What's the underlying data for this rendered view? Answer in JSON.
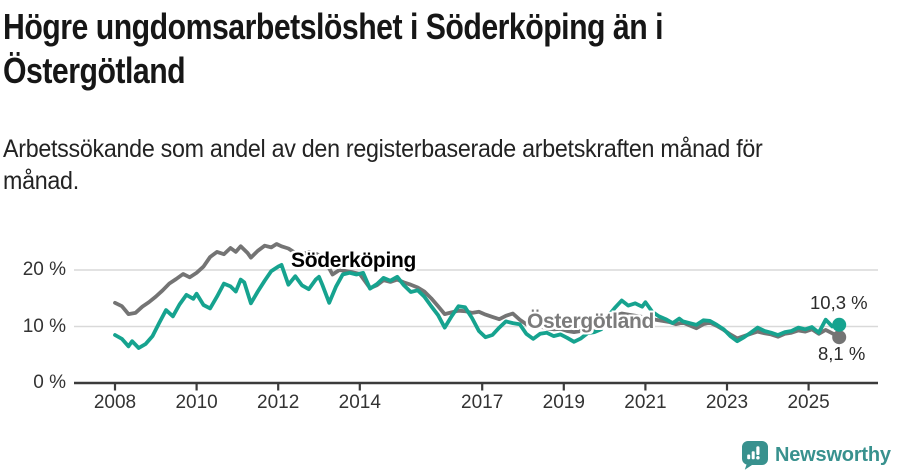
{
  "header": {
    "title_lines": [
      "Högre ungdomsarbetslöshet i Söderköping än i",
      "Östergötland"
    ],
    "subtitle_lines": [
      "Arbetssökande som andel av den registerbaserade arbetskraften månad för",
      "månad."
    ]
  },
  "footer": {
    "brand": "Newsworthy"
  },
  "colors": {
    "soderkoping": "#16a38f",
    "ostergotland": "#747474",
    "logo_teal": "#38918e",
    "grid": "#d9d9d9",
    "axis": "#3b3b3b",
    "value_label": "#2b2b2b"
  },
  "chart_data": {
    "type": "line",
    "unit": "%",
    "grid": "horizontal-only",
    "legend_position": "inline-labels",
    "xlim": [
      2007.1,
      2026.6
    ],
    "ylim": [
      0,
      25.8
    ],
    "x_ticks": [
      {
        "v": 2008,
        "label": "2008"
      },
      {
        "v": 2010,
        "label": "2010"
      },
      {
        "v": 2012,
        "label": "2012"
      },
      {
        "v": 2014,
        "label": "2014"
      },
      {
        "v": 2017,
        "label": "2017"
      },
      {
        "v": 2019,
        "label": "2019"
      },
      {
        "v": 2021,
        "label": "2021"
      },
      {
        "v": 2023,
        "label": "2023"
      },
      {
        "v": 2025,
        "label": "2025"
      }
    ],
    "y_ticks": [
      {
        "v": 0,
        "label": "0 %"
      },
      {
        "v": 10,
        "label": "10 %"
      },
      {
        "v": 20,
        "label": "20 %"
      }
    ],
    "series": [
      {
        "name": "Söderköping",
        "color": "#16a38f",
        "end_label": "10,3 %",
        "last_value": 10.3,
        "points": [
          [
            2008.0,
            8.5
          ],
          [
            2008.17,
            7.8
          ],
          [
            2008.33,
            6.5
          ],
          [
            2008.42,
            7.4
          ],
          [
            2008.58,
            6.2
          ],
          [
            2008.75,
            6.9
          ],
          [
            2008.92,
            8.3
          ],
          [
            2009.08,
            10.6
          ],
          [
            2009.25,
            12.9
          ],
          [
            2009.42,
            11.8
          ],
          [
            2009.58,
            13.9
          ],
          [
            2009.75,
            15.6
          ],
          [
            2009.92,
            14.9
          ],
          [
            2010.0,
            15.8
          ],
          [
            2010.17,
            13.8
          ],
          [
            2010.33,
            13.2
          ],
          [
            2010.5,
            15.3
          ],
          [
            2010.67,
            17.6
          ],
          [
            2010.83,
            17.1
          ],
          [
            2010.96,
            16.2
          ],
          [
            2011.08,
            18.3
          ],
          [
            2011.17,
            17.8
          ],
          [
            2011.33,
            14.1
          ],
          [
            2011.5,
            16.2
          ],
          [
            2011.67,
            18.1
          ],
          [
            2011.83,
            19.8
          ],
          [
            2012.0,
            20.6
          ],
          [
            2012.08,
            20.9
          ],
          [
            2012.25,
            17.4
          ],
          [
            2012.42,
            18.9
          ],
          [
            2012.58,
            17.3
          ],
          [
            2012.75,
            16.6
          ],
          [
            2012.92,
            18.3
          ],
          [
            2013.0,
            18.8
          ],
          [
            2013.08,
            17.4
          ],
          [
            2013.25,
            14.2
          ],
          [
            2013.42,
            17.1
          ],
          [
            2013.58,
            19.2
          ],
          [
            2013.75,
            19.5
          ],
          [
            2013.92,
            19.2
          ],
          [
            2014.08,
            19.5
          ],
          [
            2014.25,
            16.7
          ],
          [
            2014.42,
            17.5
          ],
          [
            2014.58,
            18.6
          ],
          [
            2014.75,
            18.1
          ],
          [
            2014.92,
            18.8
          ],
          [
            2015.08,
            17.3
          ],
          [
            2015.25,
            16.1
          ],
          [
            2015.42,
            16.4
          ],
          [
            2015.58,
            15.3
          ],
          [
            2015.75,
            13.6
          ],
          [
            2015.92,
            12.0
          ],
          [
            2016.08,
            9.8
          ],
          [
            2016.25,
            11.8
          ],
          [
            2016.42,
            13.6
          ],
          [
            2016.58,
            13.4
          ],
          [
            2016.75,
            11.5
          ],
          [
            2016.92,
            9.2
          ],
          [
            2017.08,
            8.1
          ],
          [
            2017.25,
            8.5
          ],
          [
            2017.42,
            9.8
          ],
          [
            2017.58,
            10.9
          ],
          [
            2017.75,
            10.6
          ],
          [
            2017.92,
            10.4
          ],
          [
            2018.08,
            8.7
          ],
          [
            2018.25,
            7.8
          ],
          [
            2018.42,
            8.7
          ],
          [
            2018.58,
            8.9
          ],
          [
            2018.75,
            8.3
          ],
          [
            2018.92,
            8.6
          ],
          [
            2019.08,
            8.0
          ],
          [
            2019.25,
            7.3
          ],
          [
            2019.42,
            7.9
          ],
          [
            2019.58,
            8.8
          ],
          [
            2019.75,
            9.0
          ],
          [
            2019.92,
            9.5
          ],
          [
            2020.08,
            11.8
          ],
          [
            2020.25,
            13.3
          ],
          [
            2020.42,
            14.6
          ],
          [
            2020.58,
            13.7
          ],
          [
            2020.75,
            14.1
          ],
          [
            2020.92,
            13.5
          ],
          [
            2021.0,
            14.3
          ],
          [
            2021.17,
            12.6
          ],
          [
            2021.33,
            11.8
          ],
          [
            2021.5,
            11.3
          ],
          [
            2021.67,
            10.6
          ],
          [
            2021.83,
            11.4
          ],
          [
            2021.92,
            10.9
          ],
          [
            2022.08,
            10.6
          ],
          [
            2022.25,
            10.3
          ],
          [
            2022.42,
            11.1
          ],
          [
            2022.58,
            11.0
          ],
          [
            2022.75,
            10.3
          ],
          [
            2022.92,
            9.5
          ],
          [
            2023.08,
            8.3
          ],
          [
            2023.25,
            7.4
          ],
          [
            2023.42,
            8.1
          ],
          [
            2023.58,
            8.9
          ],
          [
            2023.75,
            9.8
          ],
          [
            2023.92,
            9.2
          ],
          [
            2024.08,
            8.9
          ],
          [
            2024.25,
            8.5
          ],
          [
            2024.42,
            9.0
          ],
          [
            2024.58,
            9.2
          ],
          [
            2024.75,
            9.8
          ],
          [
            2024.92,
            9.5
          ],
          [
            2025.08,
            9.9
          ],
          [
            2025.25,
            8.9
          ],
          [
            2025.42,
            11.2
          ],
          [
            2025.58,
            10.0
          ],
          [
            2025.75,
            10.3
          ]
        ]
      },
      {
        "name": "Östergötland",
        "color": "#747474",
        "end_label": "8,1 %",
        "last_value": 8.1,
        "points": [
          [
            2008.0,
            14.2
          ],
          [
            2008.17,
            13.6
          ],
          [
            2008.33,
            12.2
          ],
          [
            2008.5,
            12.4
          ],
          [
            2008.67,
            13.5
          ],
          [
            2008.83,
            14.3
          ],
          [
            2009.0,
            15.3
          ],
          [
            2009.17,
            16.4
          ],
          [
            2009.33,
            17.6
          ],
          [
            2009.5,
            18.4
          ],
          [
            2009.67,
            19.3
          ],
          [
            2009.83,
            18.7
          ],
          [
            2010.0,
            19.5
          ],
          [
            2010.17,
            20.6
          ],
          [
            2010.33,
            22.3
          ],
          [
            2010.5,
            23.2
          ],
          [
            2010.67,
            22.8
          ],
          [
            2010.83,
            23.9
          ],
          [
            2010.96,
            23.2
          ],
          [
            2011.08,
            24.2
          ],
          [
            2011.25,
            23.0
          ],
          [
            2011.33,
            22.2
          ],
          [
            2011.5,
            23.4
          ],
          [
            2011.67,
            24.3
          ],
          [
            2011.83,
            24.0
          ],
          [
            2011.96,
            24.6
          ],
          [
            2012.08,
            24.2
          ],
          [
            2012.25,
            23.8
          ],
          [
            2012.42,
            23.0
          ],
          [
            2012.58,
            22.7
          ],
          [
            2012.75,
            23.2
          ],
          [
            2012.92,
            22.9
          ],
          [
            2013.08,
            22.3
          ],
          [
            2013.25,
            20.3
          ],
          [
            2013.33,
            19.2
          ],
          [
            2013.5,
            20.0
          ],
          [
            2013.67,
            19.8
          ],
          [
            2013.83,
            19.6
          ],
          [
            2014.0,
            19.3
          ],
          [
            2014.25,
            16.8
          ],
          [
            2014.42,
            17.3
          ],
          [
            2014.58,
            18.2
          ],
          [
            2014.75,
            17.9
          ],
          [
            2014.92,
            18.3
          ],
          [
            2015.08,
            17.8
          ],
          [
            2015.25,
            17.4
          ],
          [
            2015.42,
            16.9
          ],
          [
            2015.58,
            16.2
          ],
          [
            2015.75,
            15.0
          ],
          [
            2015.92,
            13.6
          ],
          [
            2016.08,
            12.2
          ],
          [
            2016.25,
            12.5
          ],
          [
            2016.42,
            12.8
          ],
          [
            2016.58,
            12.7
          ],
          [
            2016.75,
            12.4
          ],
          [
            2016.92,
            12.6
          ],
          [
            2017.08,
            12.1
          ],
          [
            2017.25,
            11.7
          ],
          [
            2017.42,
            11.3
          ],
          [
            2017.58,
            11.9
          ],
          [
            2017.75,
            12.3
          ],
          [
            2017.92,
            11.2
          ],
          [
            2018.08,
            10.4
          ],
          [
            2018.25,
            9.9
          ],
          [
            2018.42,
            10.0
          ],
          [
            2018.58,
            9.7
          ],
          [
            2018.75,
            9.5
          ],
          [
            2018.92,
            9.6
          ],
          [
            2019.08,
            9.2
          ],
          [
            2019.25,
            9.0
          ],
          [
            2019.42,
            9.2
          ],
          [
            2019.58,
            9.4
          ],
          [
            2019.75,
            9.5
          ],
          [
            2019.92,
            10.0
          ],
          [
            2020.08,
            11.2
          ],
          [
            2020.25,
            11.9
          ],
          [
            2020.42,
            12.3
          ],
          [
            2020.58,
            12.1
          ],
          [
            2020.75,
            11.9
          ],
          [
            2020.92,
            11.7
          ],
          [
            2021.08,
            11.5
          ],
          [
            2021.25,
            11.2
          ],
          [
            2021.42,
            11.0
          ],
          [
            2021.58,
            10.8
          ],
          [
            2021.75,
            10.4
          ],
          [
            2021.92,
            10.7
          ],
          [
            2022.08,
            10.2
          ],
          [
            2022.25,
            9.7
          ],
          [
            2022.42,
            10.4
          ],
          [
            2022.58,
            10.7
          ],
          [
            2022.75,
            10.1
          ],
          [
            2022.92,
            9.4
          ],
          [
            2023.08,
            8.6
          ],
          [
            2023.25,
            7.9
          ],
          [
            2023.42,
            8.3
          ],
          [
            2023.58,
            8.7
          ],
          [
            2023.75,
            9.1
          ],
          [
            2023.92,
            8.8
          ],
          [
            2024.08,
            8.6
          ],
          [
            2024.25,
            8.2
          ],
          [
            2024.42,
            8.7
          ],
          [
            2024.58,
            8.9
          ],
          [
            2024.75,
            9.3
          ],
          [
            2024.92,
            9.1
          ],
          [
            2025.08,
            9.5
          ],
          [
            2025.25,
            8.7
          ],
          [
            2025.42,
            9.4
          ],
          [
            2025.58,
            8.8
          ],
          [
            2025.75,
            8.1
          ]
        ]
      }
    ]
  }
}
